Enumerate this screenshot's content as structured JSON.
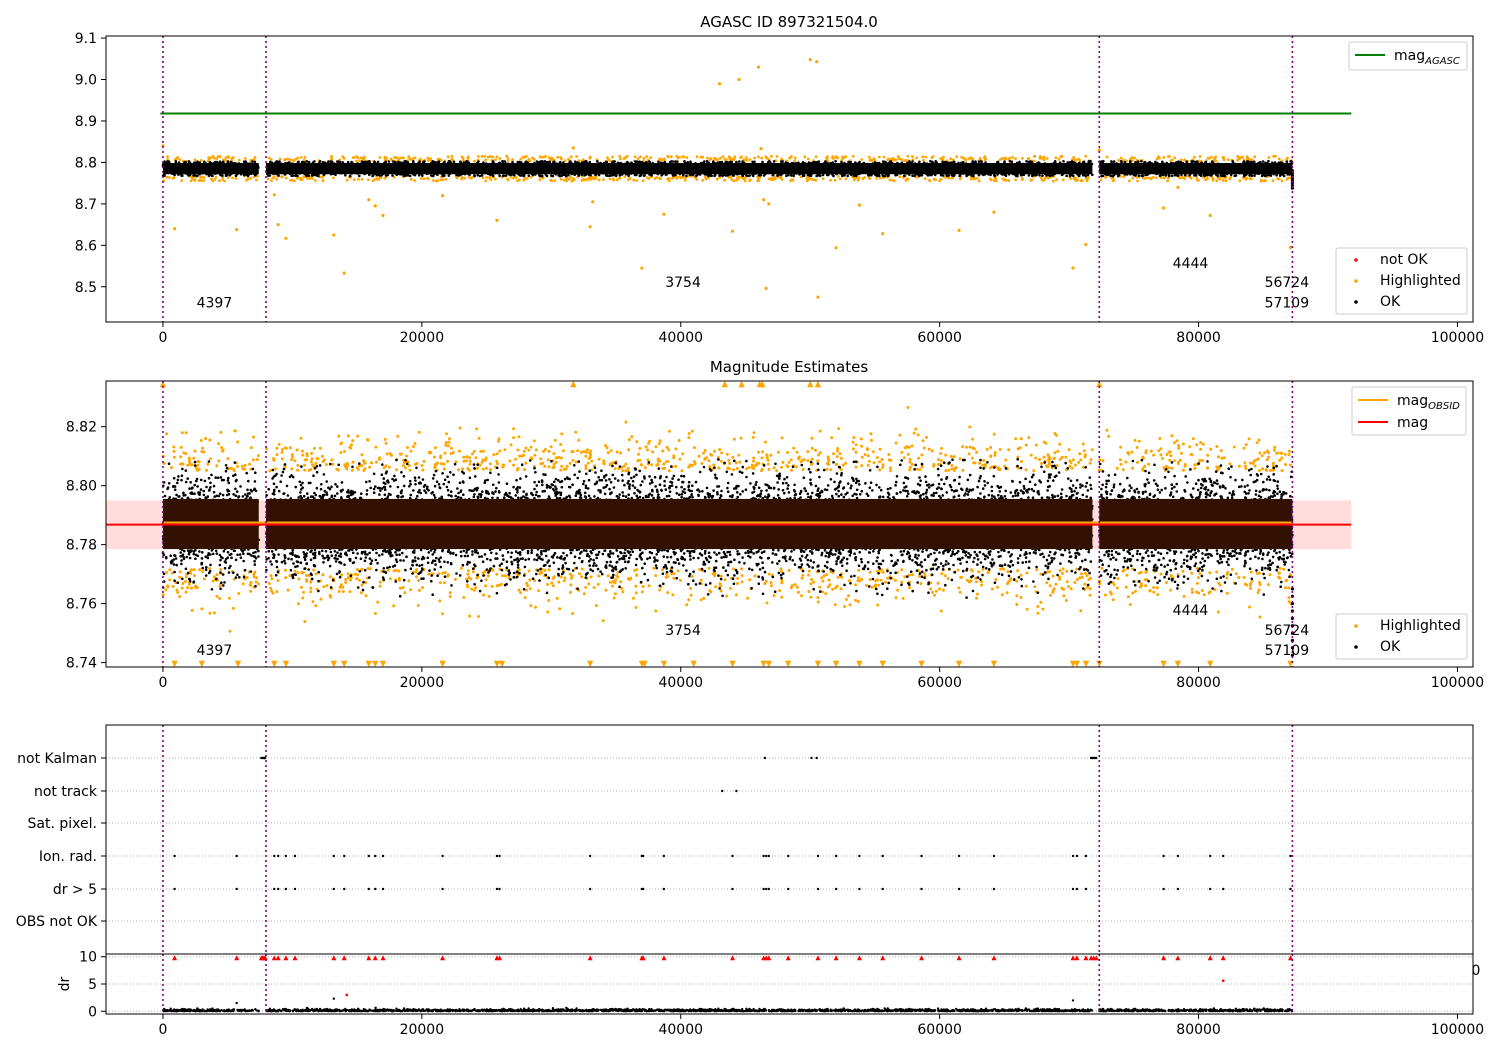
{
  "chart_data": [
    {
      "id": "top",
      "type": "scatter",
      "title": "AGASC ID 897321504.0",
      "xlabel": "",
      "ylabel": "",
      "xlim": [
        -4400,
        101200
      ],
      "ylim": [
        8.415,
        9.105
      ],
      "x_ticks": [
        0,
        20000,
        40000,
        60000,
        80000,
        100000
      ],
      "x_tick_labels": [
        "0",
        "20000",
        "40000",
        "60000",
        "80000",
        "100000"
      ],
      "y_ticks": [
        8.5,
        8.6,
        8.7,
        8.8,
        8.9,
        9.0,
        9.1
      ],
      "y_tick_labels": [
        "8.5",
        "8.6",
        "8.7",
        "8.8",
        "8.9",
        "9.0",
        "9.1"
      ],
      "obs_boundaries": [
        0,
        7960,
        72330,
        87250
      ],
      "obs_labels": [
        {
          "x": 2600,
          "y": 8.45,
          "text": "4397"
        },
        {
          "x": 38800,
          "y": 8.5,
          "text": "3754"
        },
        {
          "x": 78000,
          "y": 8.545,
          "text": "4444"
        },
        {
          "x": 85100,
          "y": 8.5,
          "text": "56724"
        },
        {
          "x": 85100,
          "y": 8.45,
          "text": "57109"
        }
      ],
      "lines": [
        {
          "name": "mag",
          "sub": "AGASC",
          "y": 8.918,
          "x_range": [
            -200,
            91800
          ],
          "color": "#008000"
        }
      ],
      "band": {
        "y_center": 8.785,
        "y_half": 0.018,
        "x_segments": [
          [
            0,
            7400
          ],
          [
            7960,
            71800
          ],
          [
            72330,
            87250
          ]
        ]
      },
      "outliers_above": [
        {
          "x": 43000,
          "y": 8.99
        },
        {
          "x": 44500,
          "y": 9.0
        },
        {
          "x": 46000,
          "y": 9.03
        },
        {
          "x": 50000,
          "y": 9.048
        },
        {
          "x": 50500,
          "y": 9.043
        },
        {
          "x": 31700,
          "y": 8.835
        },
        {
          "x": 46200,
          "y": 8.833
        },
        {
          "x": 0,
          "y": 8.84
        },
        {
          "x": 72330,
          "y": 8.83
        }
      ],
      "outliers_below": [
        {
          "x": 900,
          "y": 8.64
        },
        {
          "x": 5700,
          "y": 8.638
        },
        {
          "x": 8600,
          "y": 8.722
        },
        {
          "x": 8900,
          "y": 8.65
        },
        {
          "x": 9500,
          "y": 8.617
        },
        {
          "x": 13200,
          "y": 8.625
        },
        {
          "x": 14000,
          "y": 8.533
        },
        {
          "x": 15900,
          "y": 8.71
        },
        {
          "x": 16400,
          "y": 8.695
        },
        {
          "x": 17000,
          "y": 8.672
        },
        {
          "x": 21600,
          "y": 8.72
        },
        {
          "x": 25800,
          "y": 8.66
        },
        {
          "x": 33000,
          "y": 8.645
        },
        {
          "x": 33200,
          "y": 8.705
        },
        {
          "x": 37000,
          "y": 8.545
        },
        {
          "x": 38700,
          "y": 8.675
        },
        {
          "x": 44000,
          "y": 8.634
        },
        {
          "x": 46400,
          "y": 8.71
        },
        {
          "x": 46800,
          "y": 8.7
        },
        {
          "x": 46600,
          "y": 8.496
        },
        {
          "x": 50600,
          "y": 8.475
        },
        {
          "x": 52000,
          "y": 8.594
        },
        {
          "x": 53800,
          "y": 8.697
        },
        {
          "x": 55600,
          "y": 8.628
        },
        {
          "x": 61500,
          "y": 8.636
        },
        {
          "x": 64200,
          "y": 8.68
        },
        {
          "x": 70300,
          "y": 8.545
        },
        {
          "x": 71300,
          "y": 8.602
        },
        {
          "x": 77300,
          "y": 8.69
        },
        {
          "x": 78400,
          "y": 8.74
        },
        {
          "x": 80900,
          "y": 8.672
        },
        {
          "x": 87100,
          "y": 8.595
        }
      ],
      "legend": {
        "placement": "lower-right",
        "entries": [
          {
            "label": "not OK",
            "color": "#ff0000"
          },
          {
            "label": "Highlighted",
            "color": "#ffa500"
          },
          {
            "label": "OK",
            "color": "#000000"
          }
        ]
      },
      "line_legend": {
        "placement": "upper-right",
        "entries": [
          {
            "label": "mag",
            "sub": "AGASC",
            "color": "#008000"
          }
        ]
      }
    },
    {
      "id": "middle",
      "type": "scatter",
      "title": "Magnitude Estimates",
      "xlabel": "",
      "ylabel": "",
      "xlim": [
        -4400,
        101200
      ],
      "ylim": [
        8.7385,
        8.8355
      ],
      "x_ticks": [
        0,
        20000,
        40000,
        60000,
        80000,
        100000
      ],
      "x_tick_labels": [
        "0",
        "20000",
        "40000",
        "60000",
        "80000",
        "100000"
      ],
      "y_ticks": [
        8.74,
        8.76,
        8.78,
        8.8,
        8.82
      ],
      "y_tick_labels": [
        "8.74",
        "8.76",
        "8.78",
        "8.80",
        "8.82"
      ],
      "obs_boundaries": [
        0,
        7960,
        72330,
        87250
      ],
      "obs_labels": [
        {
          "x": 2600,
          "y": 8.7425,
          "text": "4397"
        },
        {
          "x": 38800,
          "y": 8.7493,
          "text": "3754"
        },
        {
          "x": 78000,
          "y": 8.7561,
          "text": "4444"
        },
        {
          "x": 85100,
          "y": 8.7493,
          "text": "56724"
        },
        {
          "x": 85100,
          "y": 8.7425,
          "text": "57109"
        }
      ],
      "lines": [
        {
          "name": "mag",
          "sub": "OBSID",
          "y": 8.7875,
          "x_range": [
            0,
            87250
          ],
          "color": "#ffa500"
        },
        {
          "name": "mag",
          "y": 8.7868,
          "x_range": [
            -4400,
            91800
          ],
          "color": "#ff0000"
        }
      ],
      "mag_band": {
        "y_low": 8.7785,
        "y_high": 8.795,
        "x_range": [
          -4400,
          91800
        ],
        "color": "#ffdddd"
      },
      "dense_band": {
        "y_low": 8.7785,
        "y_high": 8.7955,
        "x_segments": [
          [
            0,
            7400
          ],
          [
            7960,
            71800
          ],
          [
            72330,
            87250
          ]
        ],
        "color": "#331100"
      },
      "legend": {
        "placement": "lower-right",
        "entries": [
          {
            "label": "Highlighted",
            "color": "#ffa500"
          },
          {
            "label": "OK",
            "color": "#000000"
          }
        ]
      },
      "line_legend": {
        "placement": "upper-right",
        "entries": [
          {
            "label": "mag",
            "sub": "OBSID",
            "color": "#ffa500"
          },
          {
            "label": "mag",
            "sub": "",
            "color": "#ff0000"
          }
        ]
      }
    },
    {
      "id": "flags",
      "type": "scatter",
      "title": "",
      "xlim": [
        -4400,
        101200
      ],
      "categories": [
        "not Kalman",
        "not track",
        "Sat. pixel.",
        "Ion. rad.",
        "dr > 5",
        "OBS not OK"
      ],
      "obs_boundaries": [
        0,
        7960,
        72330,
        87250
      ],
      "flag_points": {
        "not Kalman": [
          7600,
          7700,
          7800,
          7850,
          7900,
          46500,
          50100,
          50500,
          71700,
          71800,
          71900,
          72000,
          72100
        ],
        "not track": [
          43200,
          44300
        ],
        "Sat. pixel.": [],
        "Ion. rad.": [
          900,
          5700,
          8600,
          8900,
          9500,
          10200,
          13200,
          14000,
          15900,
          16400,
          17000,
          21600,
          25800,
          26000,
          33000,
          37000,
          37100,
          38700,
          44000,
          46400,
          46600,
          46800,
          48300,
          50600,
          52000,
          53800,
          55600,
          58600,
          61500,
          64200,
          70300,
          70600,
          71300,
          77300,
          78400,
          80900,
          81900,
          87100
        ],
        "dr > 5": [
          900,
          5700,
          8600,
          8900,
          9500,
          10200,
          13200,
          14000,
          15900,
          16400,
          17000,
          21600,
          25800,
          26000,
          33000,
          37000,
          37100,
          38700,
          44000,
          46400,
          46600,
          46800,
          48300,
          50600,
          52000,
          53800,
          55600,
          58600,
          61500,
          64200,
          70300,
          70600,
          71300,
          77300,
          78400,
          80900,
          81900,
          87100
        ],
        "OBS not OK": []
      }
    },
    {
      "id": "dr",
      "type": "scatter",
      "title": "",
      "ylabel": "dr",
      "xlim": [
        -4400,
        101200
      ],
      "ylim": [
        -0.5,
        10.5
      ],
      "x_ticks": [
        0,
        20000,
        40000,
        60000,
        80000,
        100000
      ],
      "x_tick_labels": [
        "0",
        "20000",
        "40000",
        "60000",
        "80000",
        "100000"
      ],
      "y_ticks": [
        0,
        5,
        10
      ],
      "y_tick_labels": [
        "0",
        "5",
        "10"
      ],
      "obs_boundaries": [
        0,
        7960,
        72330,
        87250
      ],
      "clipped_label": "0",
      "high_points": [
        900,
        5700,
        7600,
        7700,
        7800,
        7900,
        8600,
        8900,
        9500,
        10200,
        13200,
        14000,
        15900,
        16400,
        17000,
        21600,
        25800,
        26000,
        33000,
        37000,
        37100,
        38700,
        44000,
        46400,
        46600,
        46800,
        48300,
        50600,
        52000,
        53800,
        55600,
        58600,
        61500,
        64200,
        70300,
        70600,
        71300,
        71700,
        71900,
        72100,
        77300,
        78400,
        80900,
        81900,
        87100
      ],
      "mid_points": [
        {
          "x": 14200,
          "y": 3.0
        },
        {
          "x": 13200,
          "y": 2.3
        },
        {
          "x": 81900,
          "y": 5.6
        },
        {
          "x": 5700,
          "y": 1.5
        },
        {
          "x": 70300,
          "y": 2.0
        }
      ]
    }
  ]
}
